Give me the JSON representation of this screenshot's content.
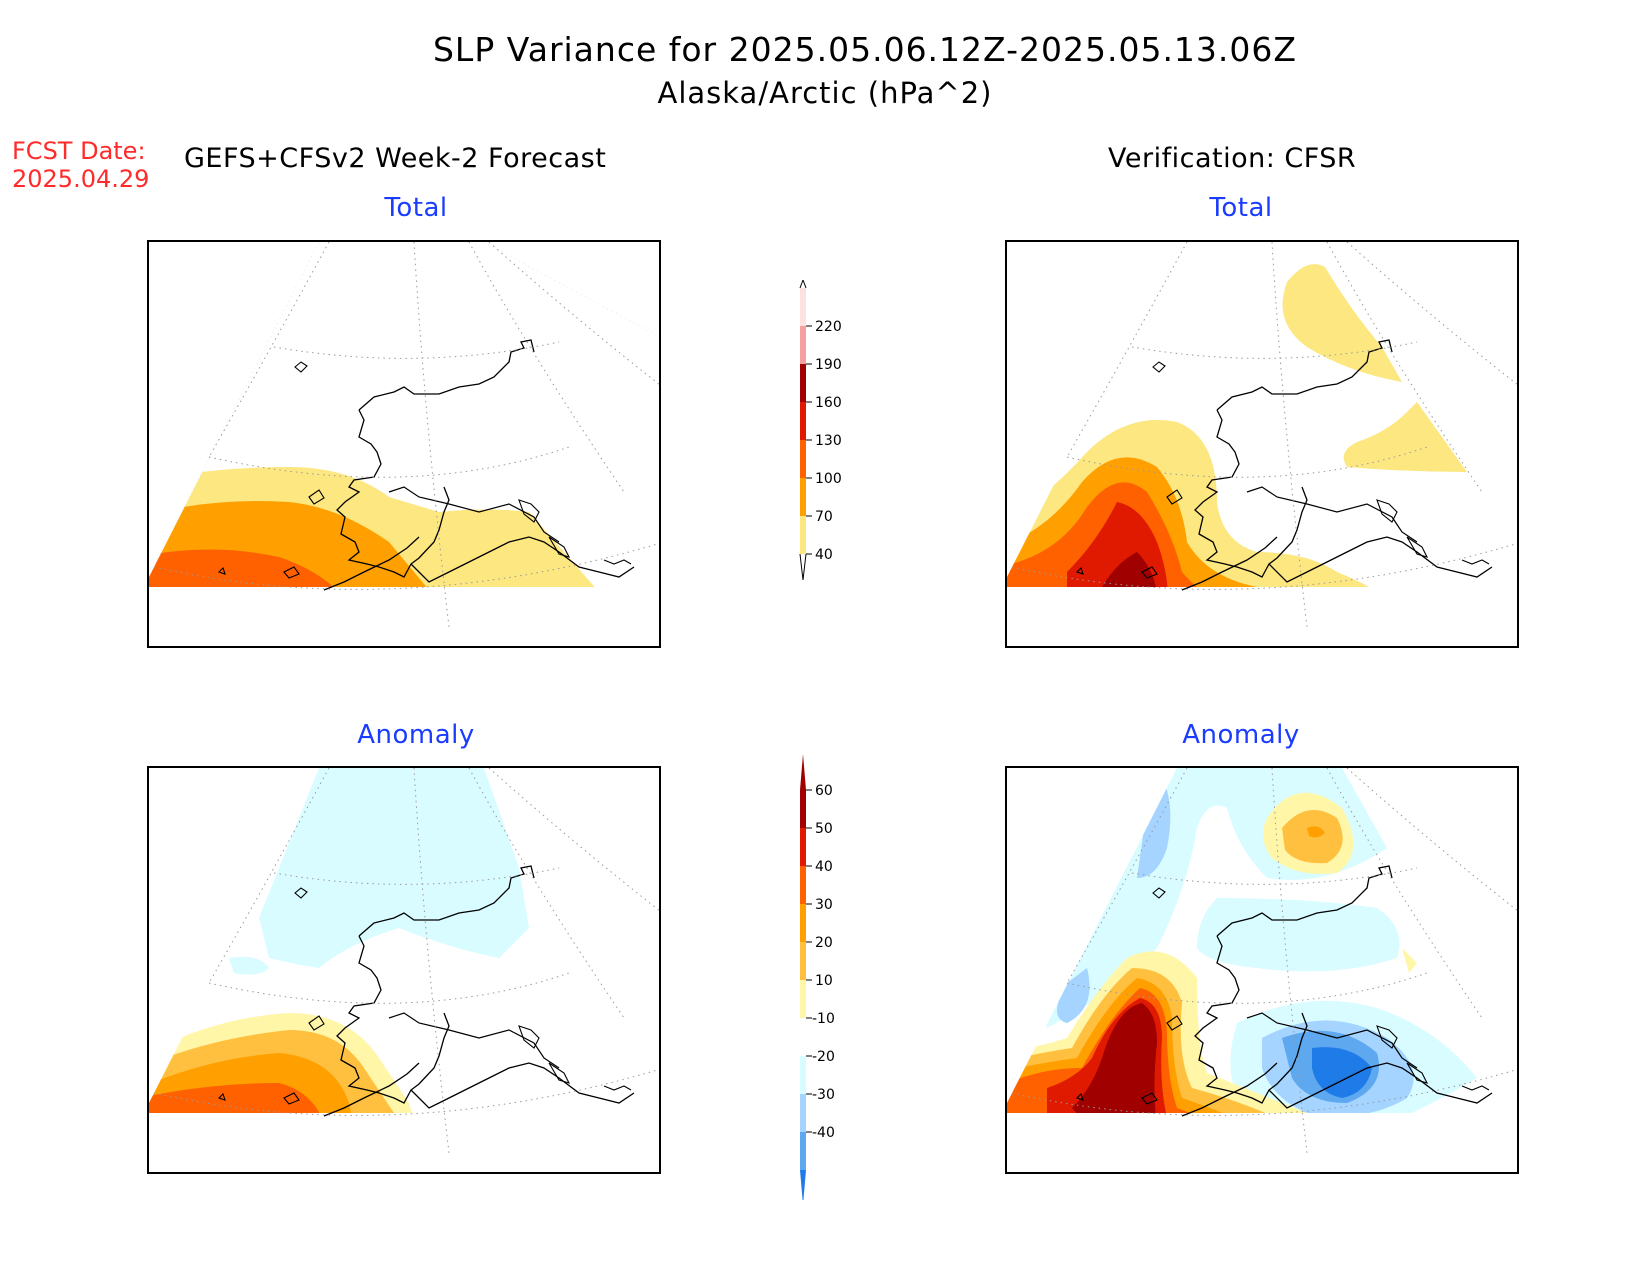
{
  "title": {
    "line1": "SLP Variance for 2025.05.06.12Z-2025.05.13.06Z",
    "line2": "Alaska/Arctic (hPa^2)"
  },
  "forecast_date": {
    "label": "FCST Date:",
    "value": "2025.04.29"
  },
  "headers": {
    "left": "GEFS+CFSv2 Week-2 Forecast",
    "right": "Verification: CFSR"
  },
  "panels": {
    "top_left_title": "Total",
    "top_right_title": "Total",
    "bottom_left_title": "Anomaly",
    "bottom_right_title": "Anomaly"
  },
  "colorbar_total": {
    "labels": [
      "220",
      "190",
      "160",
      "130",
      "100",
      "70",
      "40"
    ],
    "colors": [
      "#fde0e0",
      "#f4a0a0",
      "#a00000",
      "#e01a00",
      "#ff6000",
      "#ffa000",
      "#fde780"
    ]
  },
  "colorbar_anomaly": {
    "labels": [
      "60",
      "50",
      "40",
      "30",
      "20",
      "10",
      "-10",
      "-20",
      "-30",
      "-40"
    ],
    "colors": [
      "#a00000",
      "#e01a00",
      "#ff6000",
      "#ffa000",
      "#ffc040",
      "#fff6a8",
      "#ffffff",
      "#d8fcff",
      "#a4d4ff",
      "#5ea8f0",
      "#1e7be8"
    ]
  }
}
